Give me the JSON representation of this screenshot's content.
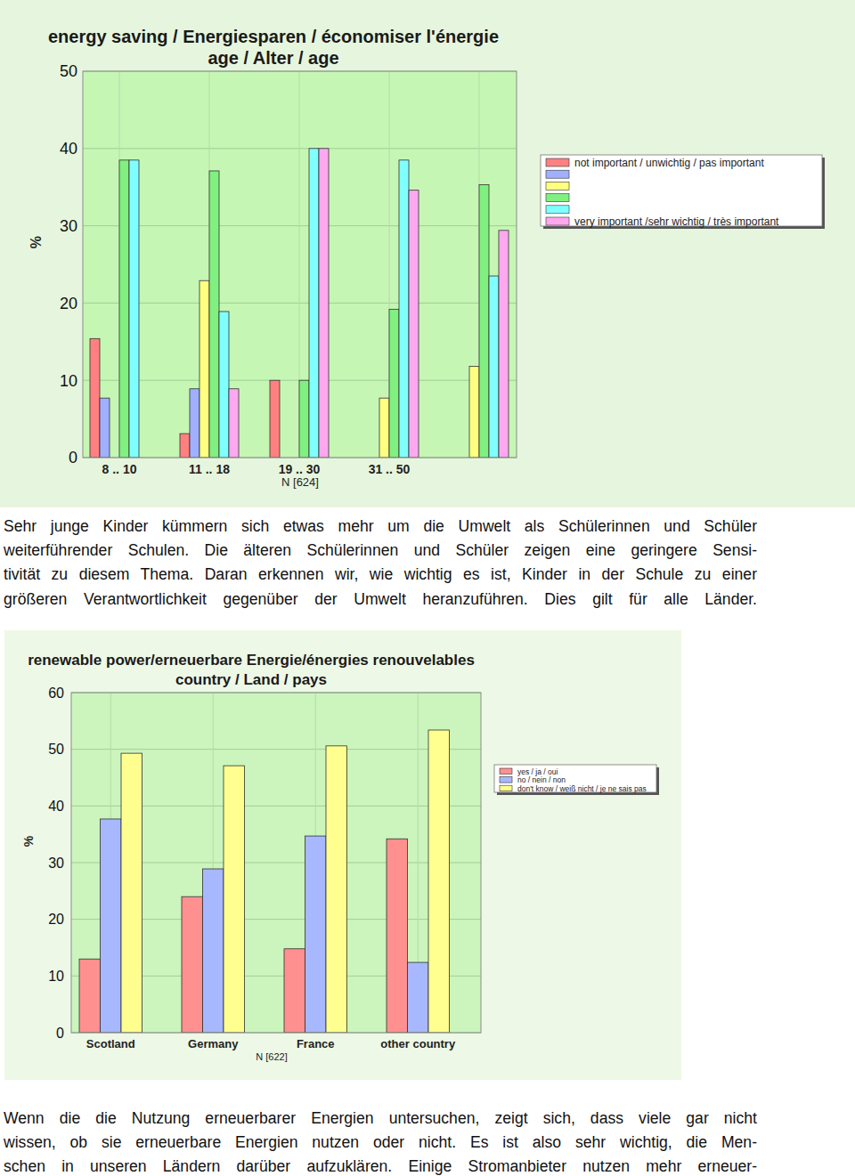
{
  "chart_data": [
    {
      "type": "bar",
      "title": "energy saving / Energiesparen / économiser l'énergie",
      "subtitle": "age / Alter / age",
      "x_label": "N [624]",
      "y_label": "%",
      "categories": [
        "8 .. 10",
        "11 .. 18",
        "19 .. 30",
        "31 .. 50",
        null
      ],
      "series": [
        {
          "name": "not important / unwichtig / pas important",
          "color": "#ff8080",
          "values": [
            15.4,
            3.1,
            10,
            0,
            0
          ]
        },
        {
          "name": null,
          "color": "#a0b0ff",
          "values": [
            7.7,
            8.9,
            0,
            0,
            0
          ]
        },
        {
          "name": null,
          "color": "#ffff80",
          "values": [
            0,
            22.9,
            0,
            7.7,
            11.8
          ]
        },
        {
          "name": null,
          "color": "#80f080",
          "values": [
            38.5,
            37.1,
            10,
            19.2,
            35.3
          ]
        },
        {
          "name": null,
          "color": "#80ffff",
          "values": [
            38.5,
            18.9,
            40,
            38.5,
            23.5
          ]
        },
        {
          "name": "very important /sehr wichtig / très important",
          "color": "#ffa8f0",
          "values": [
            0,
            8.9,
            40,
            34.6,
            29.4
          ]
        }
      ],
      "ylim": [
        0,
        50
      ],
      "yticks": [
        0,
        10,
        20,
        30,
        40,
        50
      ],
      "grid": true,
      "legend": "right"
    },
    {
      "type": "bar",
      "title": "renewable power/erneuerbare Energie/énergies renouvelables",
      "subtitle": "country / Land / pays",
      "x_label": "N [622]",
      "y_label": "%",
      "categories": [
        "Scotland",
        "Germany",
        "France",
        "other country"
      ],
      "series": [
        {
          "name": "yes / ja / oui",
          "color": "#ff9090",
          "values": [
            13.0,
            24.0,
            14.8,
            34.2
          ]
        },
        {
          "name": "no / nein / non",
          "color": "#a8b8ff",
          "values": [
            37.7,
            28.9,
            34.7,
            12.4
          ]
        },
        {
          "name": "don't know / weiß nicht / je ne sais pas",
          "color": "#ffff90",
          "values": [
            49.3,
            47.1,
            50.6,
            53.4
          ]
        }
      ],
      "ylim": [
        0,
        60
      ],
      "yticks": [
        0,
        10,
        20,
        30,
        40,
        50,
        60
      ],
      "grid": true,
      "legend": "right"
    }
  ],
  "text": {
    "paragraphs": [
      [
        "Sehr junge Kinder kümmern sich etwas mehr um die Umwelt als Schülerinnen und Schüler",
        "weiterführender Schulen. Die älteren Schülerinnen und Schüler zeigen eine geringere Sensi-",
        "tivität zu diesem Thema. Daran erkennen wir, wie wichtig es ist, Kinder in der Schule zu einer",
        "größeren Verantwortlichkeit gegenüber der Umwelt heranzuführen. Dies gilt für alle Länder."
      ],
      [
        "Wenn die die Nutzung erneuerbarer Energien untersuchen, zeigt sich, dass viele gar nicht",
        "wissen, ob sie erneuerbare Energien nutzen oder nicht. Es ist also sehr wichtig, die Men-",
        "schen in unseren Ländern darüber aufzuklären. Einige Stromanbieter nutzen mehr erneuer-"
      ]
    ]
  }
}
